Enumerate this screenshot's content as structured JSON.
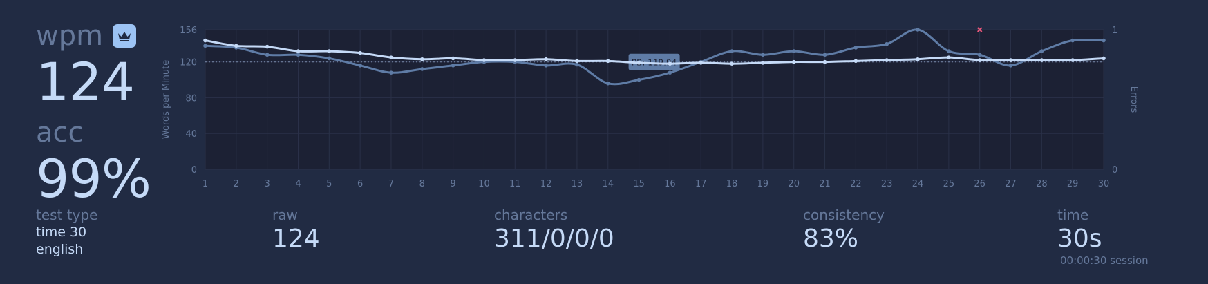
{
  "wpm": {
    "label": "wpm",
    "value": "124"
  },
  "acc": {
    "label": "acc",
    "value": "99%"
  },
  "test_type": {
    "label": "test type",
    "lines": [
      "time 30",
      "english"
    ]
  },
  "raw": {
    "label": "raw",
    "value": "124"
  },
  "characters": {
    "label": "characters",
    "value": "311/0/0/0"
  },
  "consistency": {
    "label": "consistency",
    "value": "83%"
  },
  "time": {
    "label": "time",
    "value": "30s",
    "session": "00:00:30 session"
  },
  "colors": {
    "background": "#212b43",
    "plot_bg": "#1c2134",
    "text_main": "#c5daf7",
    "text_sub": "#65789a",
    "wpm_line": "#c5daf7",
    "raw_line": "#5f7ca6",
    "error_marker": "#e8577a"
  },
  "icons": {
    "crown": "crown-icon"
  },
  "chart_data": {
    "type": "line",
    "x": [
      1,
      2,
      3,
      4,
      5,
      6,
      7,
      8,
      9,
      10,
      11,
      12,
      13,
      14,
      15,
      16,
      17,
      18,
      19,
      20,
      21,
      22,
      23,
      24,
      25,
      26,
      27,
      28,
      29,
      30
    ],
    "xlim": [
      1,
      30
    ],
    "ylabel": "Words per Minute",
    "ylim": [
      0,
      156
    ],
    "yticks": [
      0,
      40,
      80,
      120,
      156
    ],
    "y2label": "Errors",
    "y2lim": [
      0,
      1
    ],
    "y2ticks": [
      0,
      1
    ],
    "grid": true,
    "series": [
      {
        "role": "wpm",
        "values": [
          144,
          138,
          137,
          132,
          132,
          130,
          125,
          123,
          124,
          122,
          122,
          123,
          121,
          121,
          119,
          118,
          119,
          118,
          119,
          120,
          120,
          121,
          122,
          123,
          125,
          122,
          122,
          122,
          122,
          124
        ]
      },
      {
        "role": "raw",
        "values": [
          138,
          136,
          128,
          128,
          124,
          116,
          108,
          112,
          116,
          120,
          120,
          116,
          117,
          96,
          100,
          108,
          120,
          132,
          128,
          132,
          128,
          136,
          140,
          156,
          132,
          128,
          116,
          132,
          144,
          144
        ]
      }
    ],
    "errors": [
      {
        "x": 26,
        "count": 1
      }
    ],
    "annotation": {
      "text": "PB: 119.94",
      "y": 119.94
    }
  }
}
